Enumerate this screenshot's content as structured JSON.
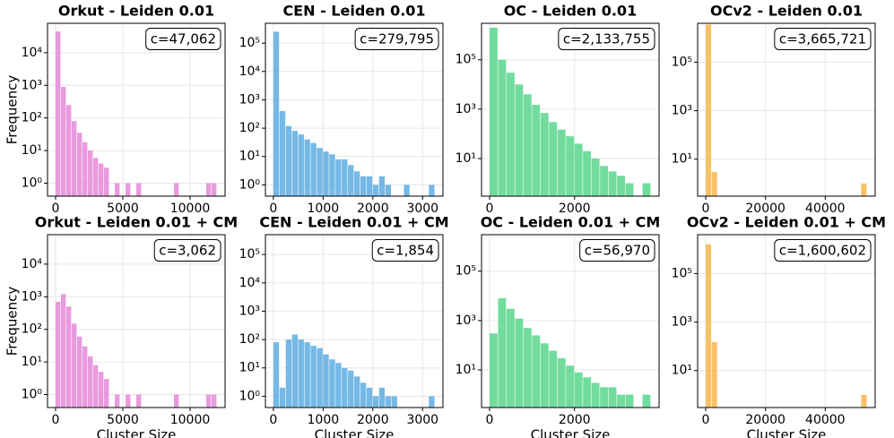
{
  "chart_data": [
    {
      "type": "histogram",
      "title": "Orkut - Leiden 0.01",
      "annotation": "c=47,062",
      "ylabel": "Frequency",
      "color": "#e48ad8",
      "log_y": true,
      "grid": true,
      "bins": [
        0,
        400,
        800,
        1200,
        1600,
        2000,
        2400,
        2800,
        3200,
        3600,
        4000,
        4400,
        4800,
        5200,
        5600,
        6000,
        6400,
        6800,
        7200,
        7600,
        8000,
        8400,
        8800,
        9200,
        9600,
        10000,
        10400,
        10800,
        11200,
        11600,
        12000
      ],
      "values": [
        45000,
        900,
        250,
        80,
        35,
        18,
        10,
        6,
        4,
        3,
        0,
        1,
        0,
        1,
        0,
        1,
        0,
        0,
        0,
        0,
        0,
        0,
        1,
        0,
        0,
        0,
        0,
        0,
        1,
        1
      ],
      "xlim": [
        -600,
        12600
      ],
      "xticks": [
        0,
        5000,
        10000
      ],
      "ylim": [
        0.4,
        80000
      ],
      "yticks": [
        {
          "value": 1,
          "label": "10⁰"
        },
        {
          "value": 10,
          "label": "10¹"
        },
        {
          "value": 100,
          "label": "10²"
        },
        {
          "value": 1000,
          "label": "10³"
        },
        {
          "value": 10000,
          "label": "10⁴"
        }
      ]
    },
    {
      "type": "histogram",
      "title": "CEN - Leiden 0.01",
      "annotation": "c=279,795",
      "color": "#5dade2",
      "log_y": true,
      "grid": true,
      "bins": [
        0,
        125,
        250,
        375,
        500,
        625,
        750,
        875,
        1000,
        1125,
        1250,
        1375,
        1500,
        1625,
        1750,
        1875,
        2000,
        2125,
        2250,
        2375,
        2500,
        2625,
        2750,
        2875,
        3000,
        3125,
        3250
      ],
      "values": [
        250000,
        400,
        120,
        80,
        60,
        40,
        30,
        20,
        15,
        12,
        8,
        8,
        5,
        3,
        2,
        2,
        1,
        2,
        1,
        0,
        0,
        1,
        0,
        0,
        0,
        1
      ],
      "xlim": [
        -160,
        3410
      ],
      "xticks": [
        0,
        1000,
        2000,
        3000
      ],
      "ylim": [
        0.4,
        500000
      ],
      "yticks": [
        {
          "value": 1,
          "label": "10⁰"
        },
        {
          "value": 10,
          "label": "10¹"
        },
        {
          "value": 100,
          "label": "10²"
        },
        {
          "value": 1000,
          "label": "10³"
        },
        {
          "value": 10000,
          "label": "10⁴"
        },
        {
          "value": 100000,
          "label": "10⁵"
        }
      ]
    },
    {
      "type": "histogram",
      "title": "OC - Leiden 0.01",
      "annotation": "c=2,133,755",
      "color": "#58d68d",
      "log_y": true,
      "grid": true,
      "bins": [
        0,
        200,
        400,
        600,
        800,
        1000,
        1200,
        1400,
        1600,
        1800,
        2000,
        2200,
        2400,
        2600,
        2800,
        3000,
        3200,
        3400,
        3600,
        3800
      ],
      "values": [
        2000000,
        100000,
        30000,
        10000,
        4000,
        1500,
        700,
        300,
        150,
        80,
        40,
        20,
        10,
        5,
        3,
        2,
        1,
        0,
        1
      ],
      "xlim": [
        -190,
        3990
      ],
      "xticks": [
        0,
        2000
      ],
      "ylim": [
        0.3,
        3000000
      ],
      "yticks": [
        {
          "value": 10,
          "label": "10¹"
        },
        {
          "value": 1000,
          "label": "10³"
        },
        {
          "value": 100000,
          "label": "10⁵"
        }
      ]
    },
    {
      "type": "histogram",
      "title": "OCv2 - Leiden 0.01",
      "annotation": "c=3,665,721",
      "color": "#f8b64c",
      "log_y": true,
      "grid": true,
      "bins": [
        0,
        2000,
        4000,
        6000,
        8000,
        10000,
        12000,
        14000,
        16000,
        18000,
        20000,
        22000,
        24000,
        26000,
        28000,
        30000,
        32000,
        34000,
        36000,
        38000,
        40000,
        42000,
        44000,
        46000,
        48000,
        50000,
        52000,
        54000
      ],
      "values": [
        3600000,
        3,
        0,
        0,
        0,
        0,
        0,
        0,
        0,
        0,
        0,
        0,
        0,
        0,
        0,
        0,
        0,
        0,
        0,
        0,
        0,
        0,
        0,
        0,
        0,
        0,
        1
      ],
      "xlim": [
        -2700,
        56700
      ],
      "xticks": [
        0,
        20000,
        40000
      ],
      "ylim": [
        0.3,
        4000000
      ],
      "yticks": [
        {
          "value": 10,
          "label": "10¹"
        },
        {
          "value": 1000,
          "label": "10³"
        },
        {
          "value": 100000,
          "label": "10⁵"
        }
      ]
    },
    {
      "type": "histogram",
      "title": "Orkut - Leiden 0.01 + CM",
      "annotation": "c=3,062",
      "ylabel": "Frequency",
      "xlabel": "Cluster Size",
      "color": "#e48ad8",
      "log_y": true,
      "grid": true,
      "bins": [
        0,
        400,
        800,
        1200,
        1600,
        2000,
        2400,
        2800,
        3200,
        3600,
        4000,
        4400,
        4800,
        5200,
        5600,
        6000,
        6400,
        6800,
        7200,
        7600,
        8000,
        8400,
        8800,
        9200,
        9600,
        10000,
        10400,
        10800,
        11200,
        11600,
        12000
      ],
      "values": [
        700,
        1200,
        500,
        150,
        60,
        30,
        15,
        8,
        5,
        3,
        0,
        1,
        0,
        1,
        0,
        1,
        0,
        0,
        0,
        0,
        0,
        0,
        1,
        0,
        0,
        0,
        0,
        0,
        1,
        1
      ],
      "xlim": [
        -600,
        12600
      ],
      "xticks": [
        0,
        5000,
        10000
      ],
      "ylim": [
        0.4,
        80000
      ],
      "yticks": [
        {
          "value": 1,
          "label": "10⁰"
        },
        {
          "value": 10,
          "label": "10¹"
        },
        {
          "value": 100,
          "label": "10²"
        },
        {
          "value": 1000,
          "label": "10³"
        },
        {
          "value": 10000,
          "label": "10⁴"
        }
      ]
    },
    {
      "type": "histogram",
      "title": "CEN - Leiden 0.01 + CM",
      "annotation": "c=1,854",
      "xlabel": "Cluster Size",
      "color": "#5dade2",
      "log_y": true,
      "grid": true,
      "bins": [
        0,
        125,
        250,
        375,
        500,
        625,
        750,
        875,
        1000,
        1125,
        1250,
        1375,
        1500,
        1625,
        1750,
        1875,
        2000,
        2125,
        2250,
        2375,
        2500,
        2625,
        2750,
        2875,
        3000,
        3125,
        3250
      ],
      "values": [
        80,
        2,
        100,
        150,
        100,
        80,
        60,
        50,
        30,
        20,
        15,
        10,
        8,
        5,
        3,
        2,
        1,
        2,
        1,
        1,
        0,
        0,
        0,
        0,
        0,
        1
      ],
      "xlim": [
        -160,
        3410
      ],
      "xticks": [
        0,
        1000,
        2000,
        3000
      ],
      "ylim": [
        0.4,
        500000
      ],
      "yticks": [
        {
          "value": 1,
          "label": "10⁰"
        },
        {
          "value": 10,
          "label": "10¹"
        },
        {
          "value": 100,
          "label": "10²"
        },
        {
          "value": 1000,
          "label": "10³"
        },
        {
          "value": 10000,
          "label": "10⁴"
        },
        {
          "value": 100000,
          "label": "10⁵"
        }
      ]
    },
    {
      "type": "histogram",
      "title": "OC - Leiden 0.01 + CM",
      "annotation": "c=56,970",
      "xlabel": "Cluster Size",
      "color": "#58d68d",
      "log_y": true,
      "grid": true,
      "bins": [
        0,
        200,
        400,
        600,
        800,
        1000,
        1200,
        1400,
        1600,
        1800,
        2000,
        2200,
        2400,
        2600,
        2800,
        3000,
        3200,
        3400,
        3600,
        3800
      ],
      "values": [
        300,
        8000,
        3000,
        1200,
        500,
        250,
        120,
        60,
        30,
        15,
        8,
        5,
        3,
        2,
        2,
        1,
        1,
        0,
        1
      ],
      "xlim": [
        -190,
        3990
      ],
      "xticks": [
        0,
        2000
      ],
      "ylim": [
        0.3,
        3000000
      ],
      "yticks": [
        {
          "value": 10,
          "label": "10¹"
        },
        {
          "value": 1000,
          "label": "10³"
        },
        {
          "value": 100000,
          "label": "10⁵"
        }
      ]
    },
    {
      "type": "histogram",
      "title": "OCv2 - Leiden 0.01 + CM",
      "annotation": "c=1,600,602",
      "xlabel": "Cluster Size",
      "color": "#f8b64c",
      "log_y": true,
      "grid": true,
      "bins": [
        0,
        2000,
        4000,
        6000,
        8000,
        10000,
        12000,
        14000,
        16000,
        18000,
        20000,
        22000,
        24000,
        26000,
        28000,
        30000,
        32000,
        34000,
        36000,
        38000,
        40000,
        42000,
        44000,
        46000,
        48000,
        50000,
        52000,
        54000
      ],
      "values": [
        1600000,
        150,
        0,
        0,
        0,
        0,
        0,
        0,
        0,
        0,
        0,
        0,
        0,
        0,
        0,
        0,
        0,
        0,
        0,
        0,
        0,
        0,
        0,
        0,
        0,
        0,
        1
      ],
      "xlim": [
        -2700,
        56700
      ],
      "xticks": [
        0,
        20000,
        40000
      ],
      "ylim": [
        0.3,
        4000000
      ],
      "yticks": [
        {
          "value": 10,
          "label": "10¹"
        },
        {
          "value": 1000,
          "label": "10³"
        },
        {
          "value": 100000,
          "label": "10⁵"
        }
      ]
    }
  ]
}
